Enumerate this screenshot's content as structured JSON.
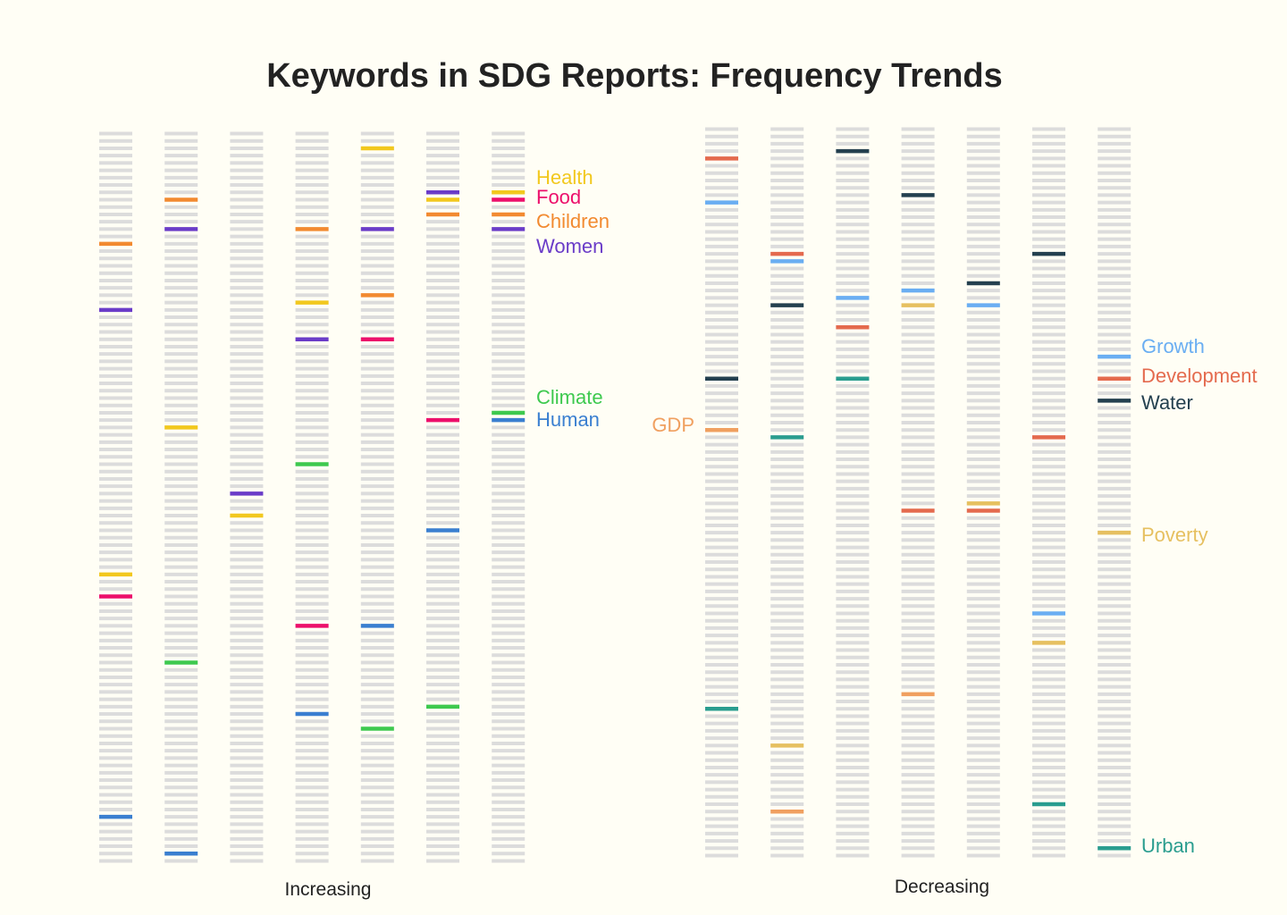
{
  "chart_data": {
    "type": "rank-strips",
    "title": "Keywords in SDG Reports: Frequency Trends",
    "slot_color": "#dcdcdc",
    "panels": [
      {
        "label": "Increasing",
        "rank_count": 100,
        "columns": 7,
        "series": [
          {
            "name": "Health",
            "color": "#f2c81e",
            "ranks": [
              61,
              41,
              53,
              24,
              3,
              10,
              9
            ]
          },
          {
            "name": "Food",
            "color": "#ec0f6b",
            "ranks": [
              64,
              null,
              null,
              68,
              29,
              40,
              10
            ]
          },
          {
            "name": "Children",
            "color": "#f28a30",
            "ranks": [
              16,
              10,
              null,
              14,
              23,
              12,
              12
            ]
          },
          {
            "name": "Women",
            "color": "#6a3cc8",
            "ranks": [
              25,
              14,
              50,
              29,
              14,
              9,
              14
            ]
          },
          {
            "name": "Climate",
            "color": "#3ec94f",
            "ranks": [
              null,
              73,
              null,
              46,
              82,
              79,
              39
            ]
          },
          {
            "name": "Human",
            "color": "#3a7fd0",
            "ranks": [
              94,
              99,
              null,
              80,
              68,
              55,
              40
            ]
          }
        ]
      },
      {
        "label": "Decreasing",
        "rank_count": 100,
        "columns": 7,
        "series": [
          {
            "name": "GDP",
            "color": "#f0a060",
            "ranks": [
              42,
              94,
              null,
              78,
              null,
              null,
              null
            ]
          },
          {
            "name": "Growth",
            "color": "#6aaef2",
            "ranks": [
              11,
              19,
              24,
              23,
              25,
              67,
              32
            ]
          },
          {
            "name": "Development",
            "color": "#e46a4e",
            "ranks": [
              5,
              18,
              28,
              53,
              53,
              43,
              35
            ]
          },
          {
            "name": "Water",
            "color": "#24404f",
            "ranks": [
              35,
              25,
              4,
              10,
              22,
              18,
              38
            ]
          },
          {
            "name": "Poverty",
            "color": "#e6c060",
            "ranks": [
              null,
              85,
              null,
              25,
              52,
              71,
              56
            ]
          },
          {
            "name": "Urban",
            "color": "#2a9d8f",
            "ranks": [
              80,
              43,
              35,
              null,
              null,
              93,
              99
            ]
          }
        ]
      }
    ]
  }
}
